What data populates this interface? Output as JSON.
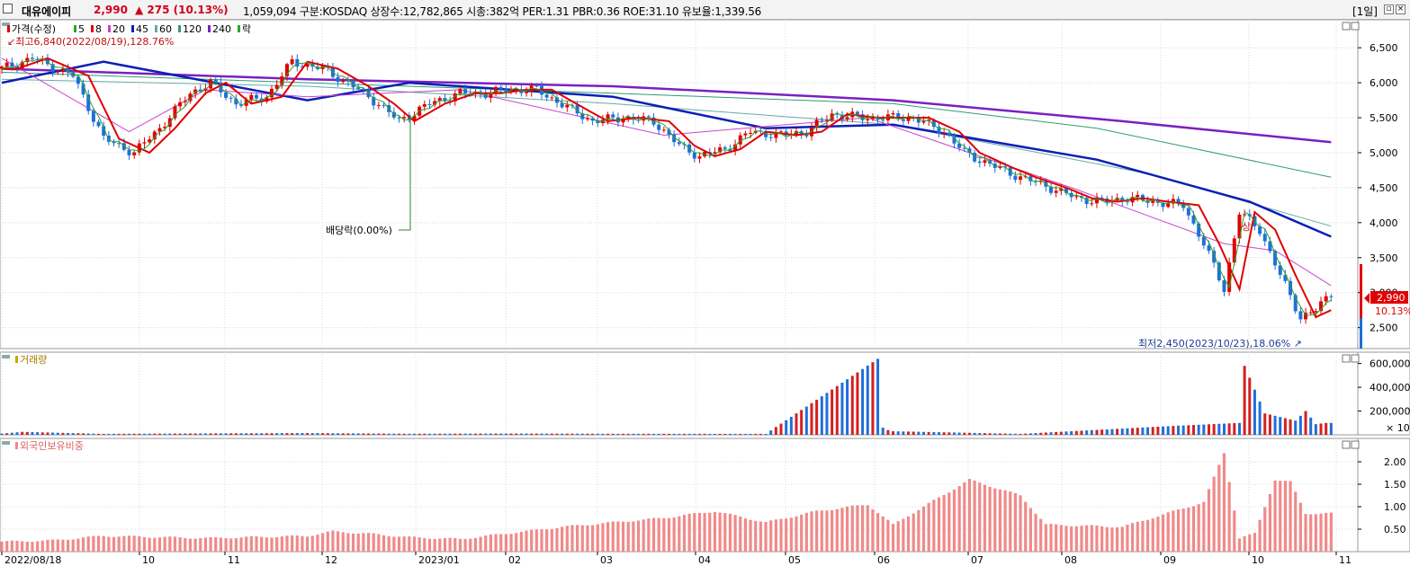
{
  "header": {
    "stock_name": "대유에이피",
    "price": "2,990",
    "change": "▲ 275  (10.13%)",
    "info": "1,059,094  구분:KOSDAQ 상장수:12,782,865 시총:382억  PER:1.31 PBR:0.36 ROE:31.10 유보율:1,339.56",
    "period": "[1일]"
  },
  "legend": {
    "price_label": "가격(수정)",
    "ma": [
      {
        "label": "5",
        "color": "#2aa52a"
      },
      {
        "label": "8",
        "color": "#e00000"
      },
      {
        "label": "20",
        "color": "#cc44cc"
      },
      {
        "label": "45",
        "color": "#0b1fb5"
      },
      {
        "label": "60",
        "color": "#66aaaa"
      },
      {
        "label": "120",
        "color": "#2e9e6e"
      },
      {
        "label": "240",
        "color": "#7a20c0"
      }
    ],
    "drop_label": "락",
    "max_note": "최고6,840(2022/08/19),128.76%",
    "min_note": "최저2,450(2023/10/23),18.06%",
    "dividend_note": "배당락(0.00%)",
    "current_price": "2,990",
    "current_pct": "10.13%",
    "marker": "상"
  },
  "panels": {
    "volume_label": "거래량",
    "volume_unit": "× 10",
    "foreign_label": "외국인보유비중"
  },
  "colors": {
    "up": "#e00000",
    "down": "#1e6fd9",
    "volume_up": "#d42020",
    "volume_down": "#1e6fd9",
    "foreign": "#f08a8a"
  },
  "chart_data": [
    {
      "type": "candlestick",
      "title": "가격(수정)",
      "ylim": [
        2200,
        6900
      ],
      "y_ticks": [
        "2,500",
        "3,000",
        "3,500",
        "4,000",
        "4,500",
        "5,000",
        "5,500",
        "6,000",
        "6,500"
      ],
      "x_ticks": [
        "2022/08/18",
        "10",
        "11",
        "12",
        "2023/01",
        "02",
        "03",
        "04",
        "05",
        "06",
        "07",
        "08",
        "09",
        "10",
        "11"
      ],
      "price_path": [
        [
          0,
          6200
        ],
        [
          6,
          6350
        ],
        [
          14,
          6100
        ],
        [
          20,
          5200
        ],
        [
          26,
          5000
        ],
        [
          31,
          5350
        ],
        [
          37,
          5850
        ],
        [
          41,
          6000
        ],
        [
          46,
          5700
        ],
        [
          52,
          5800
        ],
        [
          57,
          6300
        ],
        [
          63,
          6200
        ],
        [
          69,
          5950
        ],
        [
          74,
          5700
        ],
        [
          78,
          5450
        ],
        [
          84,
          5700
        ],
        [
          90,
          5850
        ],
        [
          95,
          5850
        ],
        [
          100,
          5900
        ],
        [
          105,
          5900
        ],
        [
          111,
          5650
        ],
        [
          116,
          5450
        ],
        [
          122,
          5500
        ],
        [
          128,
          5450
        ],
        [
          133,
          5100
        ],
        [
          137,
          4950
        ],
        [
          142,
          5050
        ],
        [
          147,
          5300
        ],
        [
          153,
          5250
        ],
        [
          158,
          5300
        ],
        [
          163,
          5550
        ],
        [
          169,
          5500
        ],
        [
          174,
          5500
        ],
        [
          179,
          5500
        ],
        [
          185,
          5300
        ],
        [
          189,
          5000
        ],
        [
          195,
          4800
        ],
        [
          200,
          4650
        ],
        [
          206,
          4500
        ],
        [
          211,
          4350
        ],
        [
          216,
          4300
        ],
        [
          221,
          4350
        ],
        [
          226,
          4300
        ],
        [
          232,
          4250
        ],
        [
          236,
          3700
        ],
        [
          240,
          3050
        ],
        [
          243,
          4150
        ],
        [
          247,
          3900
        ],
        [
          251,
          3250
        ],
        [
          255,
          2650
        ],
        [
          258,
          2750
        ],
        [
          261,
          2990
        ]
      ],
      "ma_paths": [
        {
          "period": "240",
          "points": [
            [
              0,
              6200
            ],
            [
              60,
              6050
            ],
            [
              120,
              5950
            ],
            [
              175,
              5750
            ],
            [
              220,
              5450
            ],
            [
              261,
              5150
            ]
          ]
        },
        {
          "period": "120",
          "points": [
            [
              0,
              6150
            ],
            [
              60,
              6000
            ],
            [
              120,
              5850
            ],
            [
              175,
              5700
            ],
            [
              215,
              5350
            ],
            [
              261,
              4650
            ]
          ]
        },
        {
          "period": "60",
          "points": [
            [
              0,
              6050
            ],
            [
              60,
              5950
            ],
            [
              120,
              5700
            ],
            [
              175,
              5400
            ],
            [
              225,
              4700
            ],
            [
              261,
              3950
            ]
          ]
        },
        {
          "period": "45",
          "points": [
            [
              0,
              6000
            ],
            [
              20,
              6300
            ],
            [
              60,
              5750
            ],
            [
              80,
              6000
            ],
            [
              120,
              5800
            ],
            [
              150,
              5350
            ],
            [
              175,
              5400
            ],
            [
              215,
              4900
            ],
            [
              245,
              4300
            ],
            [
              261,
              3800
            ]
          ]
        },
        {
          "period": "20",
          "points": [
            [
              0,
              6350
            ],
            [
              25,
              5300
            ],
            [
              40,
              5900
            ],
            [
              60,
              5800
            ],
            [
              90,
              5900
            ],
            [
              130,
              5250
            ],
            [
              170,
              5500
            ],
            [
              210,
              4500
            ],
            [
              240,
              3700
            ],
            [
              250,
              3600
            ],
            [
              261,
              3100
            ]
          ]
        }
      ]
    },
    {
      "type": "bar",
      "title": "거래량",
      "ylim": [
        0,
        650000
      ],
      "y_ticks": [
        "200,000",
        "400,000",
        "600,000"
      ],
      "values": [
        [
          0,
          10000
        ],
        [
          4,
          25000
        ],
        [
          20,
          8000
        ],
        [
          40,
          12000
        ],
        [
          60,
          15000
        ],
        [
          80,
          9000
        ],
        [
          100,
          11000
        ],
        [
          120,
          9000
        ],
        [
          150,
          8000
        ],
        [
          172,
          640000
        ],
        [
          173,
          60000
        ],
        [
          174,
          40000
        ],
        [
          175,
          30000
        ],
        [
          200,
          8000
        ],
        [
          230,
          75000
        ],
        [
          243,
          100000
        ],
        [
          244,
          580000
        ],
        [
          248,
          180000
        ],
        [
          254,
          120000
        ],
        [
          256,
          200000
        ],
        [
          258,
          90000
        ],
        [
          260,
          100000
        ]
      ]
    },
    {
      "type": "bar",
      "title": "외국인보유비중",
      "ylim": [
        0,
        2.4
      ],
      "y_ticks": [
        "0.50",
        "1.00",
        "1.50",
        "2.00"
      ],
      "values": [
        [
          0,
          0.22
        ],
        [
          10,
          0.25
        ],
        [
          20,
          0.35
        ],
        [
          40,
          0.3
        ],
        [
          60,
          0.35
        ],
        [
          65,
          0.45
        ],
        [
          72,
          0.4
        ],
        [
          80,
          0.32
        ],
        [
          90,
          0.28
        ],
        [
          110,
          0.55
        ],
        [
          130,
          0.75
        ],
        [
          140,
          0.9
        ],
        [
          150,
          0.65
        ],
        [
          160,
          0.9
        ],
        [
          170,
          1.05
        ],
        [
          175,
          0.6
        ],
        [
          190,
          1.6
        ],
        [
          200,
          1.25
        ],
        [
          205,
          0.6
        ],
        [
          220,
          0.55
        ],
        [
          236,
          1.1
        ],
        [
          240,
          2.2
        ],
        [
          243,
          0.3
        ],
        [
          246,
          0.4
        ],
        [
          250,
          1.6
        ],
        [
          253,
          1.55
        ],
        [
          256,
          0.85
        ],
        [
          261,
          0.85
        ]
      ]
    }
  ]
}
